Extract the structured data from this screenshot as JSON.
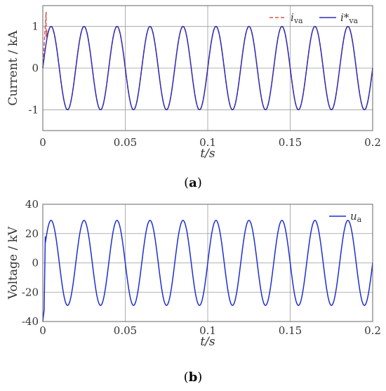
{
  "chart_data": [
    {
      "type": "line",
      "panel": "a",
      "caption_letter": "a",
      "xlabel": "t/s",
      "ylabel": "Current / kA",
      "xlim": [
        0,
        0.2
      ],
      "ylim": [
        -1.5,
        1.5
      ],
      "xticks": [
        "0",
        "0.05",
        "0.1",
        "0.15",
        "0.2"
      ],
      "yticks": [
        "1",
        "0",
        "-1"
      ],
      "grid": true,
      "legend_position": "top-right",
      "frequency_hz": 50,
      "series": [
        {
          "name": "i",
          "name_sub": "va",
          "style": "dashed",
          "color": "#d9534f",
          "amplitude": 1.0,
          "phase": "sin",
          "startup_spike": {
            "t": [
              0.0,
              0.002,
              0.002,
              0.0025
            ],
            "y": [
              0.0,
              1.35,
              0.75,
              0.9
            ]
          }
        },
        {
          "name": "i*",
          "name_sub": "va",
          "style": "solid",
          "color": "#2d2db8",
          "amplitude": 1.0,
          "phase": "sin"
        }
      ]
    },
    {
      "type": "line",
      "panel": "b",
      "caption_letter": "b",
      "xlabel": "t/s",
      "ylabel": "Voltage / kV",
      "xlim": [
        0,
        0.2
      ],
      "ylim": [
        -40,
        40
      ],
      "xticks": [
        "0",
        "0.05",
        "0.1",
        "0.15",
        "0.2"
      ],
      "yticks": [
        "40",
        "20",
        "0",
        "-20",
        "-40"
      ],
      "grid": true,
      "legend_position": "top-right",
      "frequency_hz": 50,
      "series": [
        {
          "name": "u",
          "name_sub": "a",
          "style": "solid",
          "color": "#1f2fd0",
          "amplitude": 29,
          "phase": "sin",
          "startup_transient": {
            "t": [
              0.0,
              0.0008,
              0.0015
            ],
            "y": [
              -40,
              -32,
              18
            ]
          }
        }
      ]
    }
  ]
}
